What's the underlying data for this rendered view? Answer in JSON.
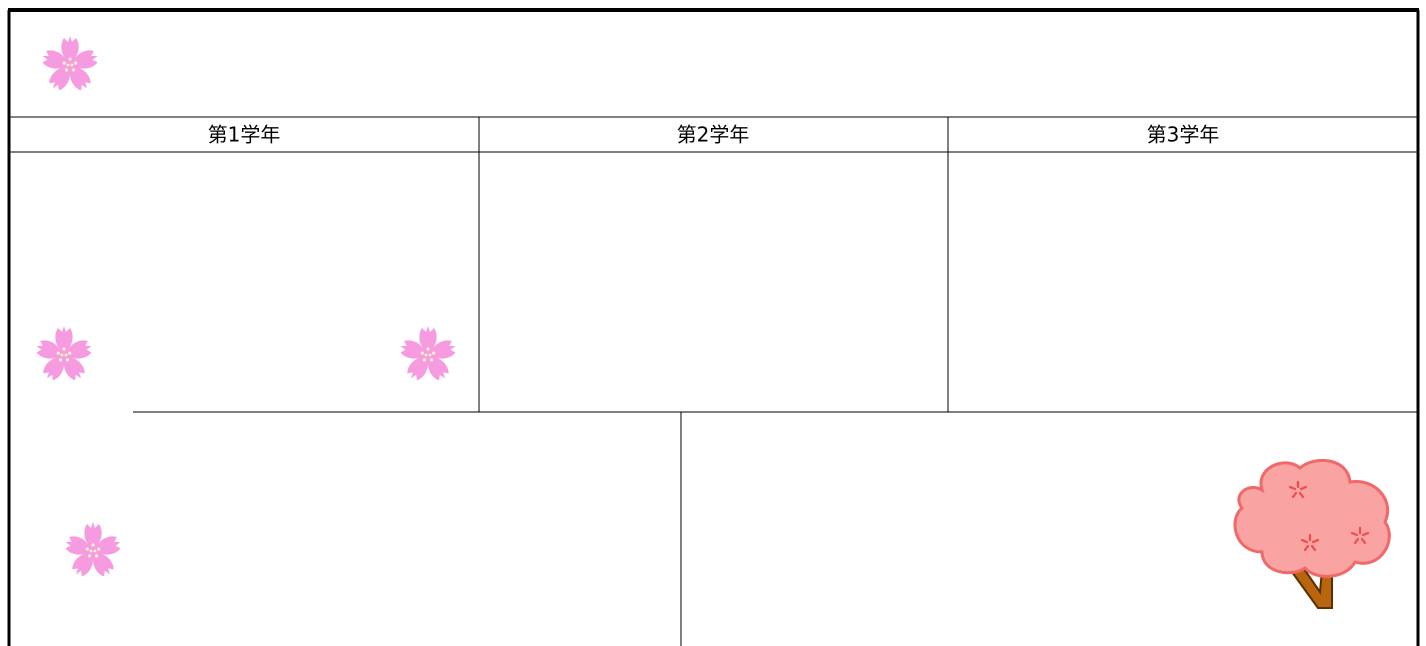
{
  "table": {
    "headers": [
      "第1学年",
      "第2学年",
      "第3学年"
    ]
  }
}
